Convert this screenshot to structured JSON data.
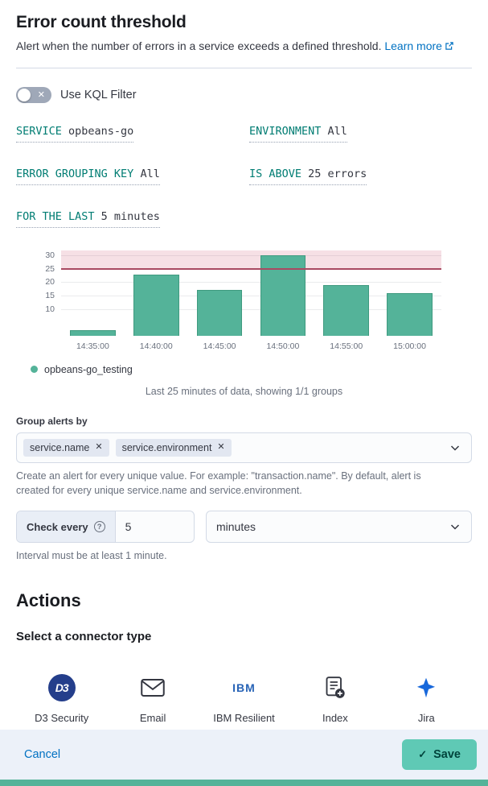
{
  "colors": {
    "accent_teal": "#017D73",
    "bar": "#54B399",
    "threshold_line": "#A94A62",
    "save_button": "#5FC9B5",
    "link": "#0071C2"
  },
  "header": {
    "title": "Error count threshold",
    "description": "Alert when the number of errors in a service exceeds a defined threshold.",
    "learn_more": "Learn more"
  },
  "kql_filter": {
    "label": "Use KQL Filter",
    "enabled": false
  },
  "expressions": [
    {
      "label": "SERVICE ",
      "value": "opbeans-go"
    },
    {
      "label": "ENVIRONMENT ",
      "value": "All"
    },
    {
      "label": "ERROR GROUPING KEY ",
      "value": "All"
    },
    {
      "label": "IS ABOVE ",
      "value": "25 errors"
    },
    {
      "label": "FOR THE LAST ",
      "value": "5 minutes"
    }
  ],
  "chart_data": {
    "type": "bar",
    "categories": [
      "14:35:00",
      "14:40:00",
      "14:45:00",
      "14:50:00",
      "14:55:00",
      "15:00:00"
    ],
    "series": [
      {
        "name": "opbeans-go_testing",
        "values": [
          2,
          23,
          17,
          30,
          19,
          16
        ]
      }
    ],
    "threshold": 25,
    "ylim": [
      0,
      32
    ],
    "yticks": [
      10,
      15,
      20,
      25,
      30
    ],
    "xlabel": "",
    "ylabel": "",
    "grid": true,
    "legend_position": "bottom-left"
  },
  "chart_caption": "Last 25 minutes of data, showing 1/1 groups",
  "group_by": {
    "label": "Group alerts by",
    "badges": [
      "service.name",
      "service.environment"
    ],
    "help": "Create an alert for every unique value. For example: \"transaction.name\". By default, alert is created for every unique service.name and service.environment."
  },
  "interval": {
    "prepend": "Check every",
    "value": "5",
    "unit": "minutes",
    "help": "Interval must be at least 1 minute."
  },
  "actions": {
    "heading": "Actions",
    "subheading": "Select a connector type",
    "connectors": [
      {
        "label": "D3 Security",
        "icon": "d3-security-logo",
        "icon_text": "D3"
      },
      {
        "label": "Email",
        "icon": "email-envelope-icon"
      },
      {
        "label": "IBM Resilient",
        "icon": "ibm-logo",
        "icon_text": "IBM"
      },
      {
        "label": "Index",
        "icon": "index-document-icon"
      },
      {
        "label": "Jira",
        "icon": "jira-logo"
      }
    ]
  },
  "footer": {
    "cancel_label": "Cancel",
    "save_label": "Save"
  }
}
